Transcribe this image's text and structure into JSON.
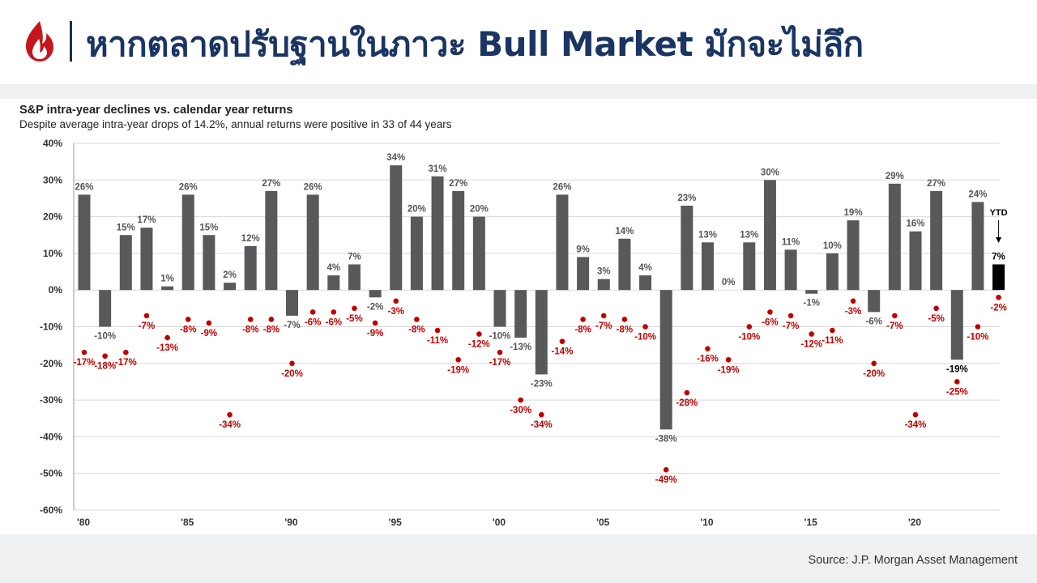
{
  "header": {
    "title": "หากตลาดปรับฐานในภาวะ Bull Market มักจะไม่ลึก",
    "logo_icon": "flame-logo-icon",
    "brand_color": "#c4161c",
    "title_color": "#1b3563"
  },
  "source": "Source: J.P. Morgan Asset Management",
  "chart_data": {
    "type": "bar",
    "title": "S&P intra-year declines vs. calendar year returns",
    "subtitle": "Despite average intra-year drops of 14.2%, annual returns were positive in 33 of 44 years",
    "ylim": [
      -60,
      40
    ],
    "yticks": [
      40,
      30,
      20,
      10,
      0,
      -10,
      -20,
      -30,
      -40,
      -50,
      -60
    ],
    "ytick_labels": [
      "40%",
      "30%",
      "20%",
      "10%",
      "0%",
      "-10%",
      "-20%",
      "-30%",
      "-40%",
      "-50%",
      "-60%"
    ],
    "xtick_labels": [
      {
        "year": 1980,
        "label": "'80"
      },
      {
        "year": 1985,
        "label": "'85"
      },
      {
        "year": 1990,
        "label": "'90"
      },
      {
        "year": 1995,
        "label": "'95"
      },
      {
        "year": 2000,
        "label": "'00"
      },
      {
        "year": 2005,
        "label": "'05"
      },
      {
        "year": 2010,
        "label": "'10"
      },
      {
        "year": 2015,
        "label": "'15"
      },
      {
        "year": 2020,
        "label": "'20"
      }
    ],
    "years": [
      1980,
      1981,
      1982,
      1983,
      1984,
      1985,
      1986,
      1987,
      1988,
      1989,
      1990,
      1991,
      1992,
      1993,
      1994,
      1995,
      1996,
      1997,
      1998,
      1999,
      2000,
      2001,
      2002,
      2003,
      2004,
      2005,
      2006,
      2007,
      2008,
      2009,
      2010,
      2011,
      2012,
      2013,
      2014,
      2015,
      2016,
      2017,
      2018,
      2019,
      2020,
      2021,
      2022,
      2023,
      2024
    ],
    "series": [
      {
        "name": "Calendar year return",
        "color": "#58595b",
        "ytd_color": "#000000",
        "values": [
          26,
          -10,
          15,
          17,
          1,
          26,
          15,
          2,
          12,
          27,
          -7,
          26,
          4,
          7,
          -2,
          34,
          20,
          31,
          27,
          20,
          -10,
          -13,
          -23,
          26,
          9,
          3,
          14,
          4,
          -38,
          23,
          13,
          0,
          13,
          30,
          11,
          -1,
          10,
          19,
          -6,
          29,
          16,
          27,
          -19,
          24,
          7
        ],
        "labels": [
          "26%",
          "-10%",
          "15%",
          "17%",
          "1%",
          "26%",
          "15%",
          "2%",
          "12%",
          "27%",
          "-7%",
          "26%",
          "4%",
          "7%",
          "-2%",
          "34%",
          "20%",
          "31%",
          "27%",
          "20%",
          "-10%",
          "-13%",
          "-23%",
          "26%",
          "9%",
          "3%",
          "14%",
          "4%",
          "-38%",
          "23%",
          "13%",
          "0%",
          "13%",
          "30%",
          "11%",
          "-1%",
          "10%",
          "19%",
          "-6%",
          "29%",
          "16%",
          "27%",
          "-19%",
          "24%",
          "7%"
        ]
      },
      {
        "name": "Intra-year decline",
        "color": "#c00000",
        "values": [
          -17,
          -18,
          -17,
          -7,
          -13,
          -8,
          -9,
          -34,
          -8,
          -8,
          -20,
          -6,
          -6,
          -5,
          -9,
          -3,
          -8,
          -11,
          -19,
          -12,
          -17,
          -30,
          -34,
          -14,
          -8,
          -7,
          -8,
          -10,
          -49,
          -28,
          -16,
          -19,
          -10,
          -6,
          -7,
          -12,
          -11,
          -3,
          -20,
          -7,
          -34,
          -5,
          -25,
          -10,
          -2
        ],
        "labels": [
          "-17%",
          "-18%",
          "-17%",
          "-7%",
          "-13%",
          "-8%",
          "-9%",
          "-34%",
          "-8%",
          "-8%",
          "-20%",
          "-6%",
          "-6%",
          "-5%",
          "-9%",
          "-3%",
          "-8%",
          "-11%",
          "-19%",
          "-12%",
          "-17%",
          "-30%",
          "-34%",
          "-14%",
          "-8%",
          "-7%",
          "-8%",
          "-10%",
          "-49%",
          "-28%",
          "-16%",
          "-19%",
          "-10%",
          "-6%",
          "-7%",
          "-12%",
          "-11%",
          "-3%",
          "-20%",
          "-7%",
          "-34%",
          "-5%",
          "-25%",
          "-10%",
          "-2%"
        ]
      }
    ],
    "ytd_label": "YTD",
    "grid": true
  }
}
